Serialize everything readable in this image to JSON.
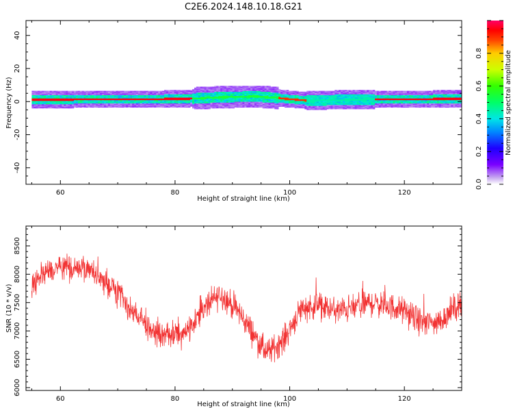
{
  "figure": {
    "title": "C2E6.2024.148.10.18.G21"
  },
  "colors": {
    "snr_line": "#f23232",
    "background": "#ffffff",
    "axes": "#000000"
  },
  "chart_data": [
    {
      "type": "heatmap",
      "xlabel": "Height of straight line (km)",
      "ylabel": "Frequency (Hz)",
      "xlim": [
        54,
        130
      ],
      "ylim": [
        -50,
        49
      ],
      "x_ticks": [
        60,
        80,
        100,
        120
      ],
      "x_tick_labels": [
        "60",
        "80",
        "100",
        "120"
      ],
      "y_ticks": [
        -40,
        -20,
        0,
        20,
        40
      ],
      "y_tick_labels": [
        "-40",
        "-20",
        "0",
        "20",
        "40"
      ],
      "grid": false,
      "colormap": "rainbow",
      "colorbar": {
        "label": "Normalized spectral amplitude",
        "range": [
          0.0,
          1.0
        ],
        "ticks": [
          0.0,
          0.2,
          0.4,
          0.6,
          0.8
        ],
        "tick_labels": [
          "0.0",
          "0.2",
          "0.4",
          "0.6",
          "0.8"
        ]
      },
      "signal_band": {
        "description_center_freq_hz": [
          {
            "x": 55,
            "f": 1.0
          },
          {
            "x": 70,
            "f": 1.2
          },
          {
            "x": 82,
            "f": 1.5
          },
          {
            "x": 88,
            "f": 2.5
          },
          {
            "x": 94,
            "f": 3.0
          },
          {
            "x": 98,
            "f": 2.0
          },
          {
            "x": 101,
            "f": 1.0
          },
          {
            "x": 103,
            "f": 0.5
          },
          {
            "x": 108,
            "f": 0.8
          },
          {
            "x": 115,
            "f": 1.2
          },
          {
            "x": 130,
            "f": 1.5
          }
        ],
        "peak_segments": [
          {
            "x_start": 55,
            "x_end": 83,
            "amplitude": 0.95
          },
          {
            "x_start": 83,
            "x_end": 98,
            "amplitude": 0.55
          },
          {
            "x_start": 98,
            "x_end": 103,
            "amplitude": 0.9
          },
          {
            "x_start": 103,
            "x_end": 115,
            "amplitude": 0.45
          },
          {
            "x_start": 115,
            "x_end": 130,
            "amplitude": 0.95
          }
        ]
      }
    },
    {
      "type": "line",
      "xlabel": "Height of straight line (km)",
      "ylabel": "SNR (10 * v/v)",
      "xlim": [
        54,
        130
      ],
      "ylim": [
        5950,
        8850
      ],
      "x_ticks": [
        60,
        80,
        100,
        120
      ],
      "x_tick_labels": [
        "60",
        "80",
        "100",
        "120"
      ],
      "y_ticks": [
        6000,
        6500,
        7000,
        7500,
        8000,
        8500
      ],
      "y_tick_labels": [
        "6000",
        "6500",
        "7000",
        "7500",
        "8000",
        "8500"
      ],
      "grid": false,
      "series": [
        {
          "trend_x": [
            55,
            58,
            61,
            64,
            67,
            70,
            73,
            76,
            79,
            82,
            85,
            88,
            91,
            94,
            96,
            99,
            102,
            105,
            108,
            111,
            114,
            117,
            120,
            123,
            126,
            128,
            130
          ],
          "trend_y": [
            7850,
            8050,
            8100,
            8100,
            7950,
            7650,
            7300,
            7000,
            6900,
            7000,
            7400,
            7650,
            7350,
            6900,
            6600,
            6850,
            7400,
            7450,
            7350,
            7400,
            7500,
            7450,
            7350,
            7150,
            7150,
            7350,
            7500
          ],
          "noise_amplitude": 180
        }
      ]
    }
  ]
}
